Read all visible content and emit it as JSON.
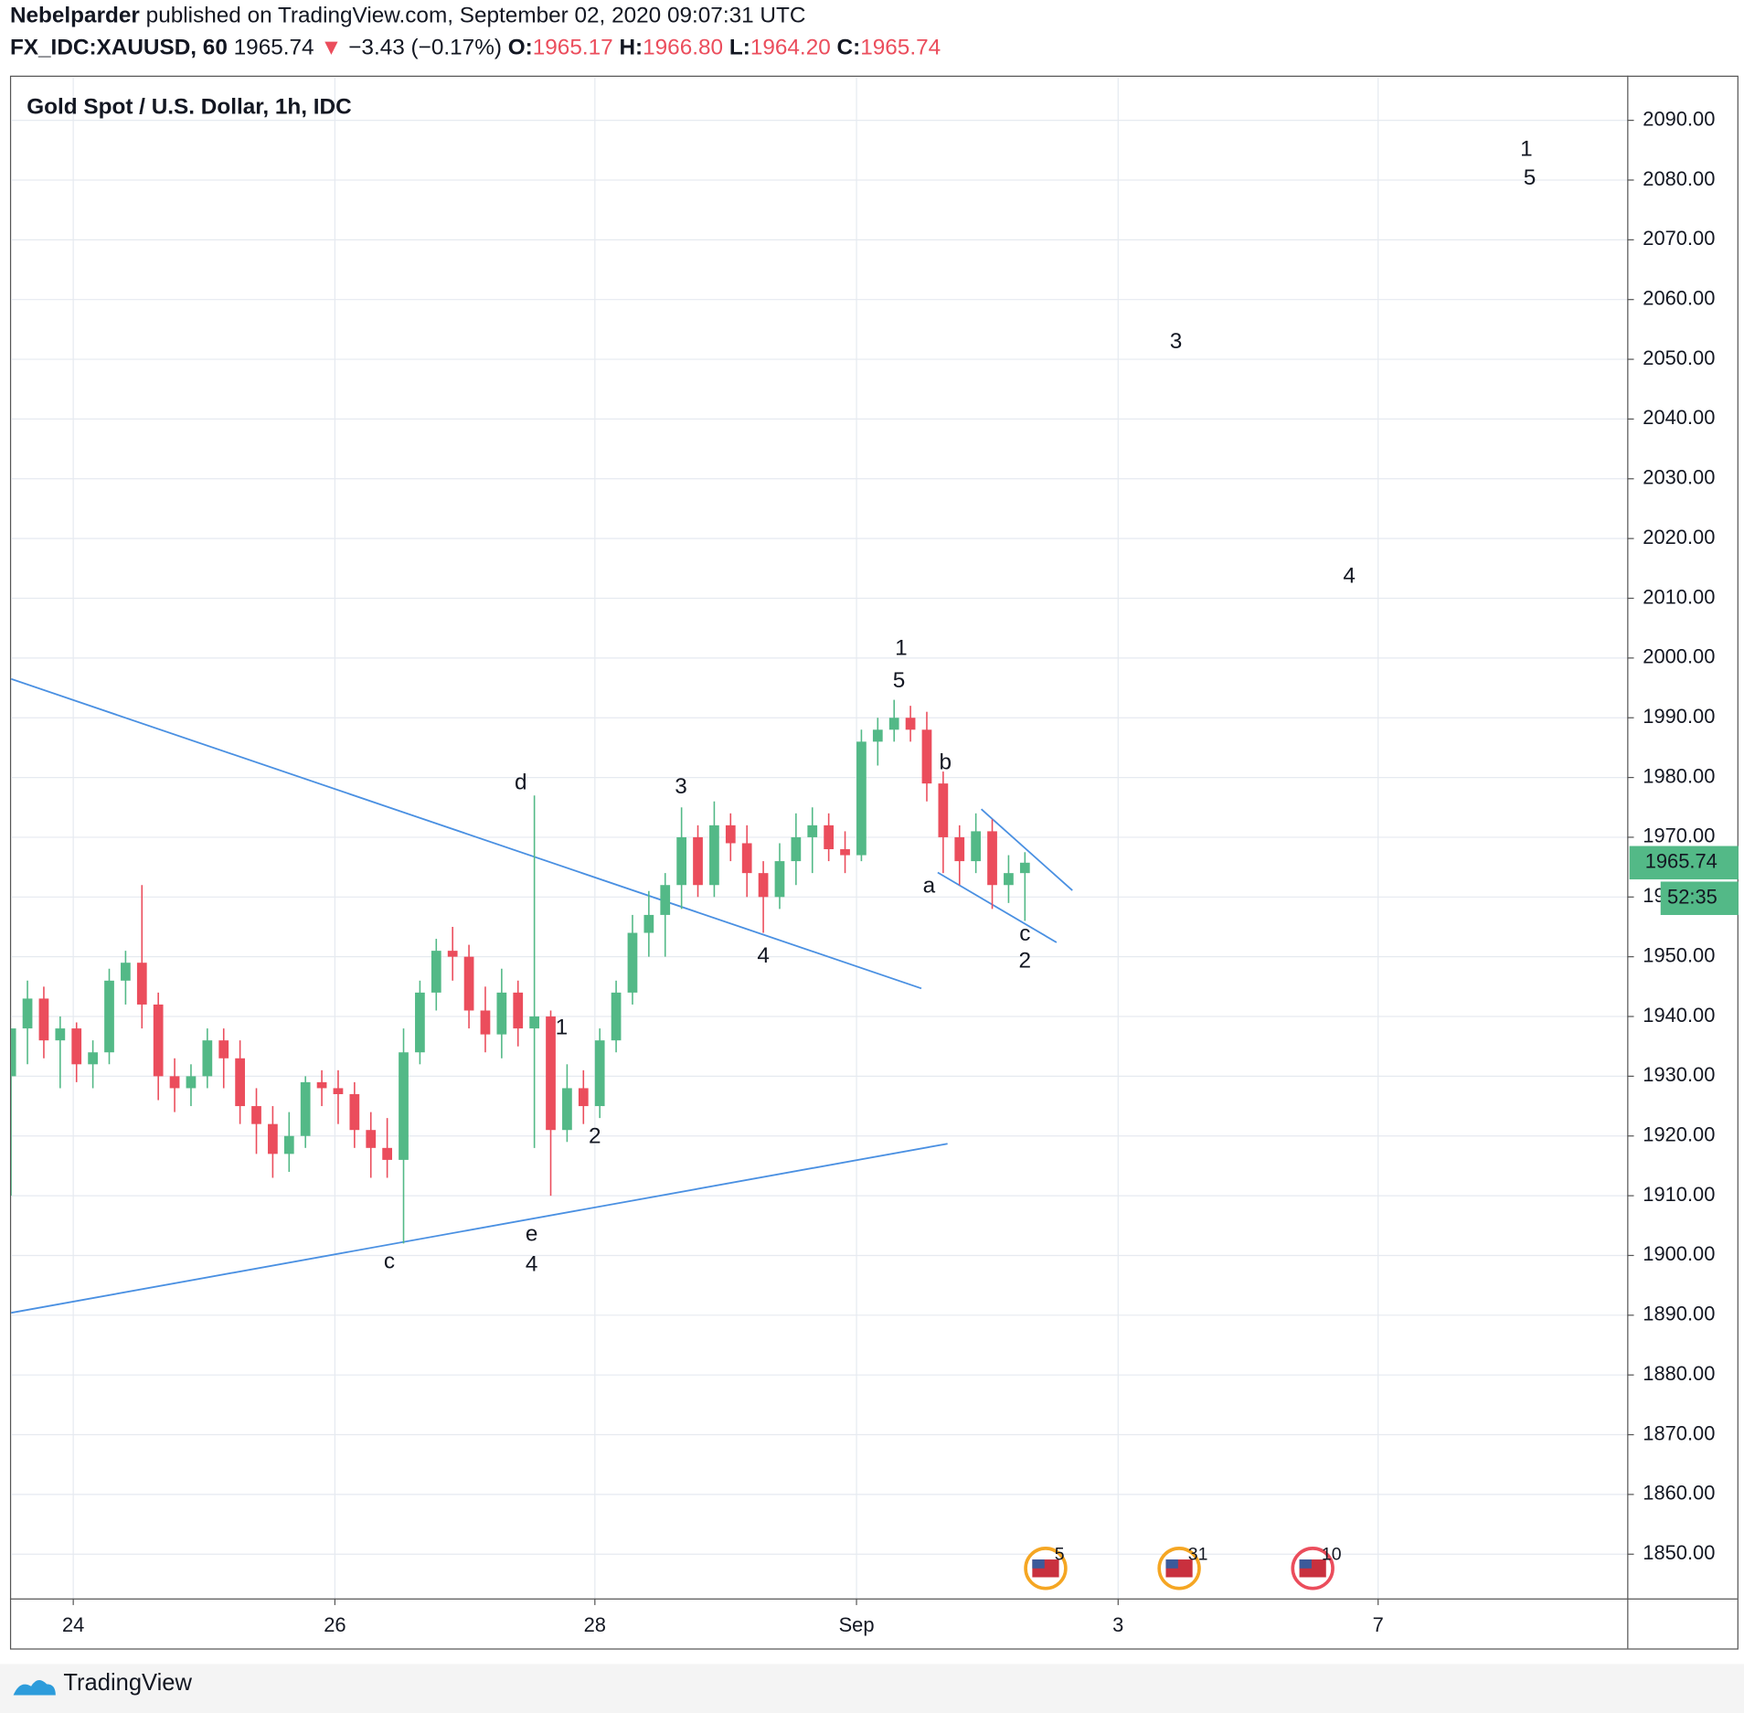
{
  "header": {
    "author": "Nebelparder",
    "published": "published on TradingView.com, September 02, 2020 09:07:31 UTC",
    "symbol": "FX_IDC:XAUUSD, 60",
    "price": "1965.74",
    "arrow": "▼",
    "change": "−3.43 (−0.17%)",
    "ohlc": [
      {
        "key": "O:",
        "value": "1965.17"
      },
      {
        "key": "H:",
        "value": "1966.80"
      },
      {
        "key": "L:",
        "value": "1964.20"
      },
      {
        "key": "C:",
        "value": "1965.74"
      }
    ]
  },
  "footer": {
    "brand": "TradingView"
  },
  "chart_data": {
    "type": "candlestick",
    "title": "Gold Spot / U.S. Dollar, 1h, IDC",
    "up_color": "#53b987",
    "down_color": "#eb4d5c",
    "grid": true,
    "x": [
      0,
      3,
      6,
      9,
      12,
      15,
      18,
      21,
      24,
      27,
      30,
      33,
      36,
      39,
      42,
      45,
      48,
      51,
      54,
      57,
      60,
      63,
      66,
      69,
      72,
      75,
      78,
      81,
      84,
      87,
      90,
      93,
      96,
      99,
      102,
      105,
      108,
      111,
      114,
      117,
      120,
      123,
      126,
      129,
      132,
      135,
      138,
      141,
      144,
      147,
      150,
      153,
      156,
      159,
      162,
      165,
      168,
      171,
      174,
      177,
      180,
      183,
      186
    ],
    "open": [
      1930,
      1938,
      1943,
      1936,
      1938,
      1932,
      1934,
      1946,
      1949,
      1942,
      1930,
      1928,
      1930,
      1936,
      1933,
      1925,
      1922,
      1917,
      1920,
      1929,
      1928,
      1927,
      1921,
      1918,
      1916,
      1934,
      1944,
      1951,
      1950,
      1941,
      1937,
      1944,
      1938,
      1940,
      1921,
      1928,
      1925,
      1936,
      1944,
      1954,
      1957,
      1962,
      1970,
      1962,
      1972,
      1969,
      1964,
      1960,
      1966,
      1970,
      1972,
      1968,
      1967,
      1986,
      1988,
      1990,
      1988,
      1979,
      1970,
      1966,
      1971,
      1962,
      1964
    ],
    "high": [
      1938,
      1946,
      1945,
      1940,
      1939,
      1936,
      1948,
      1951,
      1962,
      1944,
      1933,
      1932,
      1938,
      1938,
      1936,
      1928,
      1925,
      1924,
      1930,
      1931,
      1931,
      1929,
      1924,
      1923,
      1938,
      1946,
      1953,
      1955,
      1952,
      1945,
      1948,
      1946,
      1977,
      1941,
      1932,
      1931,
      1938,
      1946,
      1957,
      1961,
      1964,
      1975,
      1972,
      1976,
      1974,
      1972,
      1966,
      1969,
      1974,
      1975,
      1974,
      1971,
      1988,
      1990,
      1993,
      1992,
      1991,
      1981,
      1972,
      1974,
      1973,
      1967,
      1967.5
    ],
    "low": [
      1910,
      1932,
      1933,
      1928,
      1929,
      1928,
      1932,
      1942,
      1938,
      1926,
      1924,
      1925,
      1928,
      1928,
      1922,
      1917,
      1913,
      1914,
      1918,
      1925,
      1922,
      1918,
      1913,
      1913,
      1902,
      1932,
      1941,
      1946,
      1938,
      1934,
      1933,
      1935,
      1918,
      1910,
      1919,
      1922,
      1923,
      1934,
      1942,
      1950,
      1950,
      1958,
      1960,
      1960,
      1966,
      1960,
      1954,
      1958,
      1962,
      1964,
      1966,
      1964,
      1966,
      1982,
      1986,
      1986,
      1976,
      1964,
      1962,
      1964,
      1958,
      1959,
      1956
    ],
    "close": [
      1938,
      1943,
      1936,
      1938,
      1932,
      1934,
      1946,
      1949,
      1942,
      1930,
      1928,
      1930,
      1936,
      1933,
      1925,
      1922,
      1917,
      1920,
      1929,
      1928,
      1927,
      1921,
      1918,
      1916,
      1934,
      1944,
      1951,
      1950,
      1941,
      1937,
      1944,
      1938,
      1940,
      1921,
      1928,
      1925,
      1936,
      1944,
      1954,
      1957,
      1962,
      1970,
      1962,
      1972,
      1969,
      1964,
      1960,
      1966,
      1970,
      1972,
      1968,
      1967,
      1986,
      1988,
      1990,
      1988,
      1979,
      1970,
      1966,
      1971,
      1962,
      1964,
      1965.74
    ],
    "last_price": 1965.74,
    "countdown": "52:35",
    "xlim": [
      0,
      296.5
    ],
    "xticks": [
      {
        "value": 11.4,
        "label": "24"
      },
      {
        "value": 59.4,
        "label": "26"
      },
      {
        "value": 107.1,
        "label": "28"
      },
      {
        "value": 155.1,
        "label": "Sep"
      },
      {
        "value": 203.1,
        "label": "3"
      },
      {
        "value": 250.8,
        "label": "7"
      }
    ],
    "ylim": [
      1842.6,
      2097.1
    ],
    "yticks": [
      {
        "value": 1850,
        "label": "1850.00"
      },
      {
        "value": 1860,
        "label": "1860.00"
      },
      {
        "value": 1870,
        "label": "1870.00"
      },
      {
        "value": 1880,
        "label": "1880.00"
      },
      {
        "value": 1890,
        "label": "1890.00"
      },
      {
        "value": 1900,
        "label": "1900.00"
      },
      {
        "value": 1910,
        "label": "1910.00"
      },
      {
        "value": 1920,
        "label": "1920.00"
      },
      {
        "value": 1930,
        "label": "1930.00"
      },
      {
        "value": 1940,
        "label": "1940.00"
      },
      {
        "value": 1950,
        "label": "1950.00"
      },
      {
        "value": 1960,
        "label": "1960.00"
      },
      {
        "value": 1970,
        "label": "1970.00"
      },
      {
        "value": 1980,
        "label": "1980.00"
      },
      {
        "value": 1990,
        "label": "1990.00"
      },
      {
        "value": 2000,
        "label": "2000.00"
      },
      {
        "value": 2010,
        "label": "2010.00"
      },
      {
        "value": 2020,
        "label": "2020.00"
      },
      {
        "value": 2030,
        "label": "2030.00"
      },
      {
        "value": 2040,
        "label": "2040.00"
      },
      {
        "value": 2050,
        "label": "2050.00"
      },
      {
        "value": 2060,
        "label": "2060.00"
      },
      {
        "value": 2070,
        "label": "2070.00"
      },
      {
        "value": 2080,
        "label": "2080.00"
      },
      {
        "value": 2090,
        "label": "2090.00"
      }
    ],
    "trendline_color": "#4a90e2",
    "trendlines": [
      {
        "x": [
          0,
          167
        ],
        "y": [
          1996.5,
          1944.7
        ]
      },
      {
        "x": [
          0,
          171.8
        ],
        "y": [
          1890.4,
          1918.7
        ]
      },
      {
        "x": [
          178,
          194.7
        ],
        "y": [
          1974.7,
          1961.1
        ]
      },
      {
        "x": [
          170,
          191.8
        ],
        "y": [
          1964.1,
          1952.4
        ]
      }
    ],
    "annotations": [
      {
        "text": "1",
        "x": 278,
        "y": 2085,
        "color": "#f5a623"
      },
      {
        "text": "5",
        "x": 278.6,
        "y": 2080.2,
        "color": "#e0457b"
      },
      {
        "text": "3",
        "x": 213.7,
        "y": 2052.8,
        "color": "#e0457b"
      },
      {
        "text": "4",
        "x": 245.5,
        "y": 2013.6,
        "color": "#e0457b"
      },
      {
        "text": "1",
        "x": 163.3,
        "y": 2001.5,
        "color": "#d6336c"
      },
      {
        "text": "5",
        "x": 162.9,
        "y": 1996.1,
        "color": "#b35fd0"
      },
      {
        "text": "b",
        "x": 171.4,
        "y": 1982.4,
        "color": "#4aa3a0"
      },
      {
        "text": "d",
        "x": 93.5,
        "y": 1979,
        "color": "#e24b4b"
      },
      {
        "text": "3",
        "x": 122.9,
        "y": 1978.3,
        "color": "#b35fd0"
      },
      {
        "text": "a",
        "x": 168.4,
        "y": 1961.7,
        "color": "#4aa3a0"
      },
      {
        "text": "4",
        "x": 138,
        "y": 1950,
        "color": "#b35fd0"
      },
      {
        "text": "c",
        "x": 186,
        "y": 1953.7,
        "color": "#4aa3a0"
      },
      {
        "text": "2",
        "x": 186,
        "y": 1949.2,
        "color": "#d6336c"
      },
      {
        "text": "1",
        "x": 101,
        "y": 1938,
        "color": "#b35fd0"
      },
      {
        "text": "2",
        "x": 107.1,
        "y": 1919.8,
        "color": "#b35fd0"
      },
      {
        "text": "e",
        "x": 95.5,
        "y": 1903.4,
        "color": "#e24b4b"
      },
      {
        "text": "c",
        "x": 69.4,
        "y": 1898.8,
        "color": "#e24b4b"
      },
      {
        "text": "4",
        "x": 95.5,
        "y": 1898.4,
        "color": "#3a8a3a"
      }
    ],
    "events": [
      {
        "x": 189.8,
        "label": "5"
      },
      {
        "x": 214.3,
        "label": "31"
      },
      {
        "x": 238.8,
        "label": "10"
      }
    ]
  }
}
